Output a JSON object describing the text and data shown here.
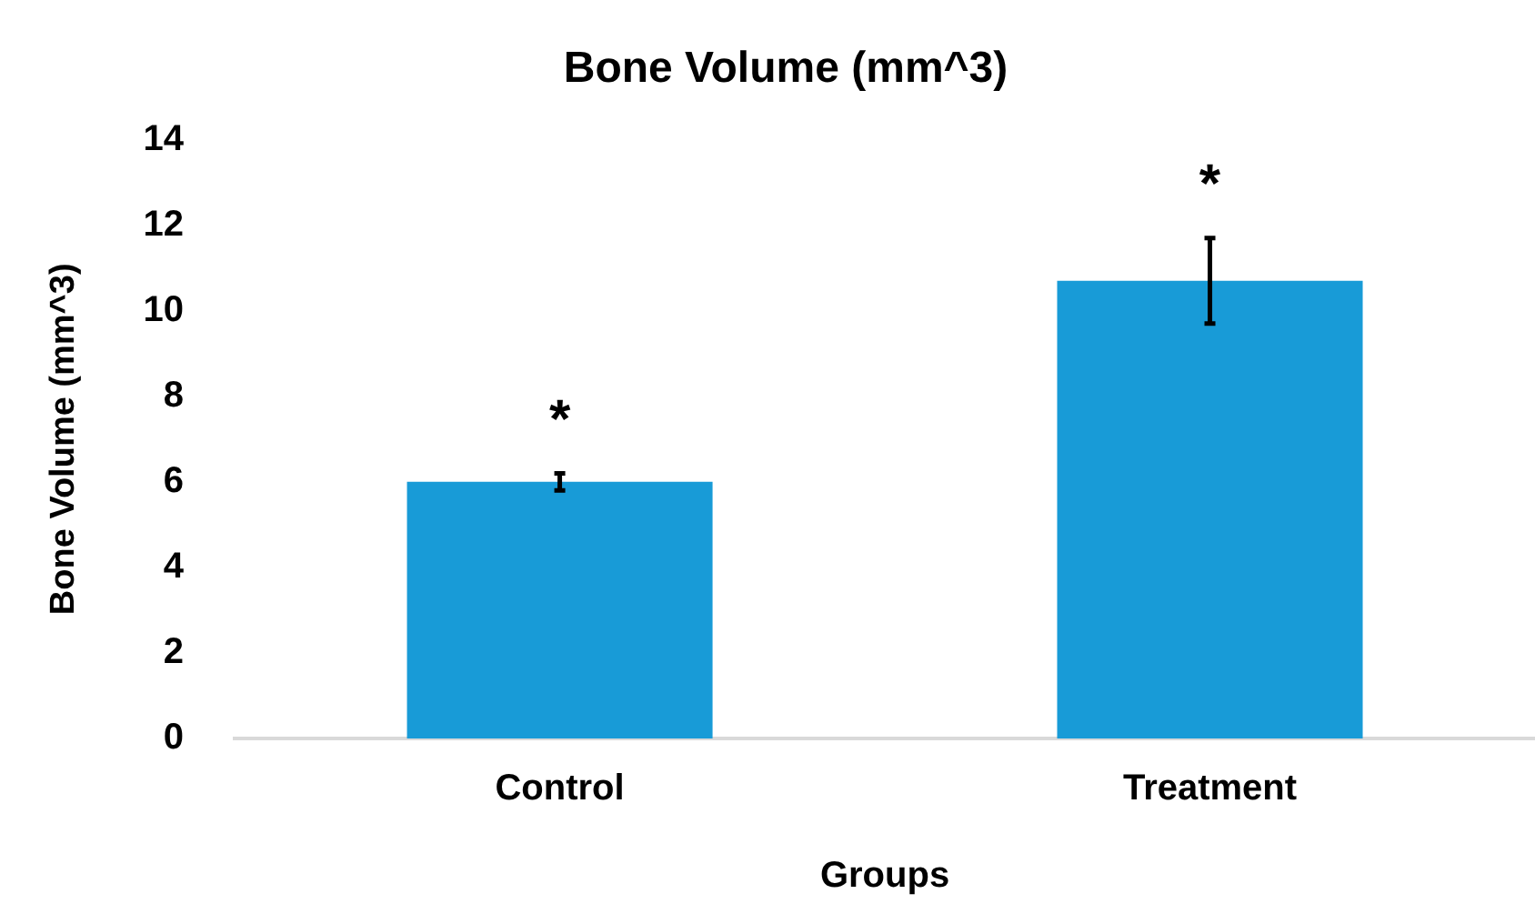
{
  "chart_data": {
    "type": "bar",
    "title": "Bone Volume (mm^3)",
    "xlabel": "Groups",
    "ylabel": "Bone Volume (mm^3)",
    "categories": [
      "Control",
      "Treatment"
    ],
    "series": [
      {
        "color": "#189bd7",
        "values": [
          6.0,
          10.7
        ],
        "errors": [
          0.2,
          1.0
        ]
      }
    ],
    "ylim": [
      0,
      14
    ],
    "yticks": [
      0,
      2,
      4,
      6,
      8,
      10,
      12,
      14
    ],
    "grid": false,
    "legend": false,
    "annotations": [
      "*",
      "*"
    ]
  }
}
